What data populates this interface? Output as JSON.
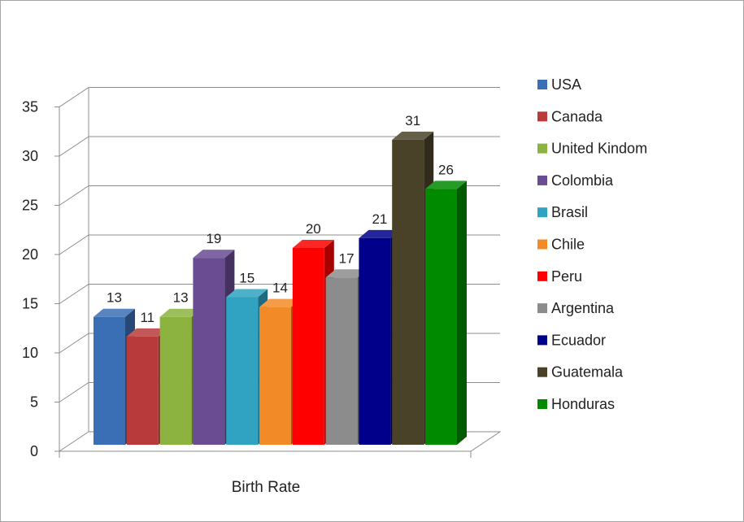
{
  "chart_data": {
    "type": "bar",
    "title": "",
    "xlabel": "",
    "ylabel": "",
    "categories": [
      "Birth Rate"
    ],
    "ylim": [
      0,
      35
    ],
    "ytick_step": 5,
    "yticks": [
      "0",
      "5",
      "10",
      "15",
      "20",
      "25",
      "30",
      "35"
    ],
    "grid": true,
    "legend_position": "right",
    "series": [
      {
        "name": "USA",
        "values": [
          13
        ],
        "color": "#3a6fb5"
      },
      {
        "name": "Canada",
        "values": [
          11
        ],
        "color": "#b83a3a"
      },
      {
        "name": "United Kindom",
        "values": [
          13
        ],
        "color": "#8cb23f"
      },
      {
        "name": "Colombia",
        "values": [
          19
        ],
        "color": "#6a4c93"
      },
      {
        "name": "Brasil",
        "values": [
          15
        ],
        "color": "#2fa3c1"
      },
      {
        "name": "Chile",
        "values": [
          14
        ],
        "color": "#f28a28"
      },
      {
        "name": "Peru",
        "values": [
          20
        ],
        "color": "#ff0000"
      },
      {
        "name": "Argentina",
        "values": [
          17
        ],
        "color": "#8c8c8c"
      },
      {
        "name": "Ecuador",
        "values": [
          21
        ],
        "color": "#00008b"
      },
      {
        "name": "Guatemala",
        "values": [
          31
        ],
        "color": "#4a4228"
      },
      {
        "name": "Honduras",
        "values": [
          26
        ],
        "color": "#008a00"
      }
    ]
  }
}
